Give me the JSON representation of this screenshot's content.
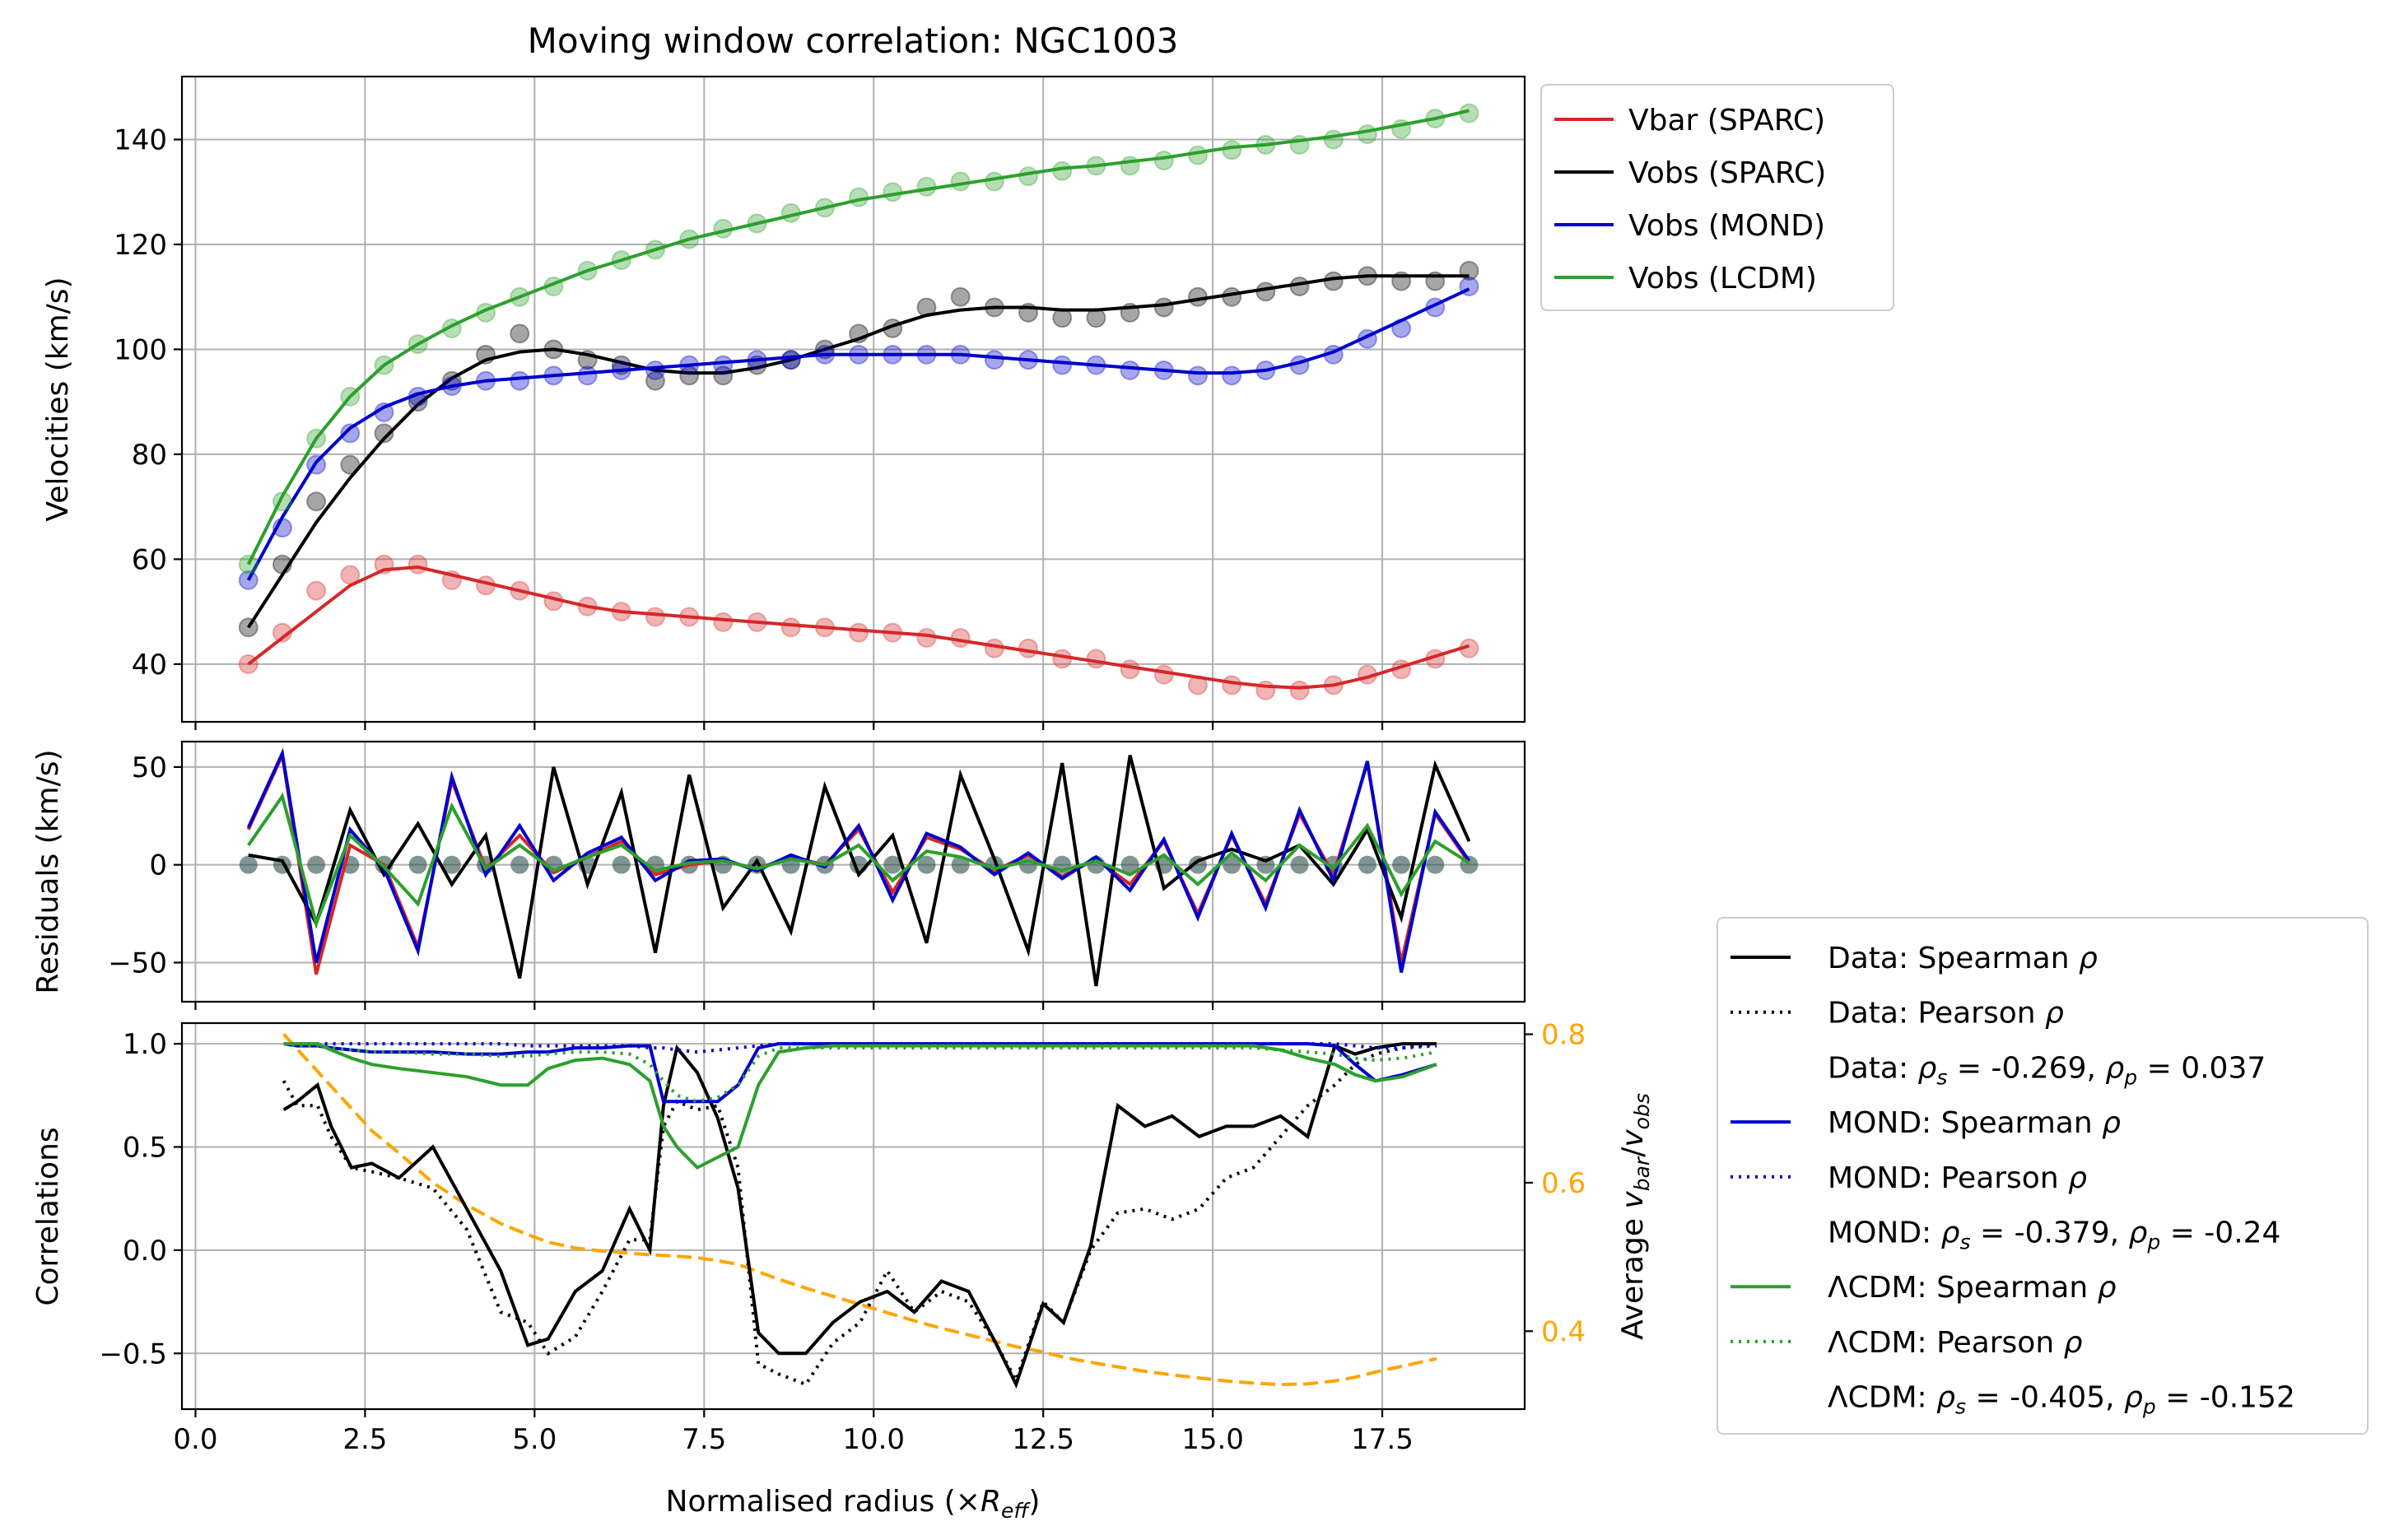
{
  "chart_data": [
    {
      "type": "line",
      "title": "Moving window correlation: NGC1003",
      "ylabel": "Velocities (km/s)",
      "xlim": [
        -0.2,
        19.6
      ],
      "ylim": [
        29,
        152
      ],
      "yticks": [
        "40",
        "60",
        "80",
        "100",
        "120",
        "140"
      ],
      "grid": true,
      "legend_position": "outside top-right",
      "legend": [
        "Vbar (SPARC)",
        "Vobs (SPARC)",
        "Vobs (MOND)",
        "Vobs (LCDM)"
      ],
      "x": [
        0.78,
        1.28,
        1.78,
        2.28,
        2.78,
        3.28,
        3.78,
        4.28,
        4.78,
        5.28,
        5.78,
        6.28,
        6.78,
        7.28,
        7.78,
        8.28,
        8.78,
        9.28,
        9.78,
        10.28,
        10.78,
        11.28,
        11.78,
        12.28,
        12.78,
        13.28,
        13.78,
        14.28,
        14.78,
        15.28,
        15.78,
        16.28,
        16.78,
        17.28,
        17.78,
        18.28,
        18.78
      ],
      "series": [
        {
          "name": "Vbar (SPARC)",
          "color": "#d62728",
          "points": [
            40,
            46,
            54,
            57,
            59,
            59,
            56,
            55,
            54,
            52,
            51,
            50,
            49,
            49,
            48,
            48,
            47,
            47,
            46,
            46,
            45,
            45,
            43,
            43,
            41,
            41,
            39,
            38,
            36,
            36,
            35,
            35,
            36,
            38,
            39,
            41,
            43
          ],
          "smooth": [
            40,
            45,
            50,
            55,
            58,
            58.5,
            57,
            55.5,
            54,
            52.5,
            51,
            50,
            49.5,
            49,
            48.5,
            48,
            47.5,
            47,
            46.5,
            46,
            45.5,
            44.5,
            43.5,
            42.5,
            41.5,
            40.5,
            39.5,
            38.5,
            37.5,
            36.5,
            35.8,
            35.5,
            36,
            37.5,
            39.5,
            41.5,
            43.5
          ]
        },
        {
          "name": "Vobs (SPARC)",
          "color": "#000000",
          "points": [
            47,
            59,
            71,
            78,
            84,
            90,
            94,
            99,
            103,
            100,
            98,
            97,
            94,
            95,
            95,
            97,
            98,
            100,
            103,
            104,
            108,
            110,
            108,
            107,
            106,
            106,
            107,
            108,
            110,
            110,
            111,
            112,
            113,
            114,
            113,
            113,
            115
          ],
          "smooth": [
            47,
            57,
            67,
            75.5,
            83,
            89.5,
            94.5,
            98,
            99.5,
            100,
            99,
            97.5,
            96,
            95.5,
            95.5,
            96.5,
            98,
            100,
            102,
            104.5,
            106.5,
            107.5,
            108,
            108,
            107.5,
            107.5,
            108,
            108.5,
            109.5,
            110.5,
            111.5,
            112.5,
            113.5,
            114,
            114,
            114,
            114
          ]
        },
        {
          "name": "Vobs (MOND)",
          "color": "#0000cc",
          "points": [
            56,
            66,
            78,
            84,
            88,
            91,
            93,
            94,
            94,
            95,
            95,
            96,
            96,
            97,
            97,
            98,
            98,
            99,
            99,
            99,
            99,
            99,
            98,
            98,
            97,
            97,
            96,
            96,
            95,
            95,
            96,
            97,
            99,
            102,
            104,
            108,
            112
          ],
          "smooth": [
            56,
            68,
            78.5,
            85,
            89,
            91.5,
            93,
            94,
            94.5,
            95,
            95.5,
            96,
            96.5,
            97,
            97.5,
            98,
            98.5,
            99,
            99,
            99,
            99,
            99,
            98.5,
            98,
            97.5,
            97,
            96.5,
            96,
            95.5,
            95.5,
            96,
            97.5,
            99.5,
            102.5,
            105.5,
            108.5,
            111.5
          ]
        },
        {
          "name": "Vobs (LCDM)",
          "color": "#2ca02c",
          "points": [
            59,
            71,
            83,
            91,
            97,
            101,
            104,
            107,
            110,
            112,
            115,
            117,
            119,
            121,
            123,
            124,
            126,
            127,
            129,
            130,
            131,
            132,
            132,
            133,
            134,
            135,
            135,
            136,
            137,
            138,
            139,
            139,
            140,
            141,
            142,
            144,
            145
          ],
          "smooth": [
            59,
            72,
            83,
            91,
            97,
            101,
            104.5,
            107.5,
            110,
            112.5,
            115,
            117,
            119,
            121,
            122.5,
            124,
            125.5,
            127,
            128.5,
            129.5,
            130.5,
            131.5,
            132.5,
            133.5,
            134.5,
            135,
            135.8,
            136.5,
            137.5,
            138.5,
            139,
            139.8,
            140.6,
            141.6,
            142.8,
            144,
            145.5
          ]
        }
      ]
    },
    {
      "type": "line",
      "ylabel": "Residuals (km/s)",
      "xlim": [
        -0.2,
        19.6
      ],
      "ylim": [
        -70,
        63
      ],
      "yticks": [
        "50",
        "0",
        "−50"
      ],
      "grid": true,
      "x": [
        0.78,
        1.28,
        1.78,
        2.28,
        2.78,
        3.28,
        3.78,
        4.28,
        4.78,
        5.28,
        5.78,
        6.28,
        6.78,
        7.28,
        7.78,
        8.28,
        8.78,
        9.28,
        9.78,
        10.28,
        10.78,
        11.28,
        11.78,
        12.28,
        12.78,
        13.28,
        13.78,
        14.28,
        14.78,
        15.28,
        15.78,
        16.28,
        16.78,
        17.28,
        17.78,
        18.28,
        18.78
      ],
      "series": [
        {
          "name": "Vbar residual",
          "color": "#d62728",
          "values": [
            18,
            56,
            -56,
            10,
            0,
            -42,
            43,
            -2,
            15,
            -4,
            4,
            12,
            -5,
            0,
            2,
            -2,
            4,
            0,
            18,
            -14,
            14,
            8,
            -3,
            5,
            -6,
            3,
            -10,
            12,
            -25,
            15,
            -20,
            26,
            -5,
            52,
            -50,
            26,
            1
          ]
        },
        {
          "name": "Vobs residual",
          "color": "#000000",
          "values": [
            5,
            2,
            -30,
            28,
            -5,
            21,
            -10,
            15,
            -58,
            50,
            -10,
            37,
            -45,
            46,
            -22,
            2,
            -34,
            40,
            -5,
            15,
            -40,
            46,
            3,
            -44,
            52,
            -62,
            56,
            -12,
            2,
            8,
            2,
            10,
            -10,
            18,
            -27,
            51,
            12
          ]
        },
        {
          "name": "MOND residual",
          "color": "#0000cc",
          "values": [
            19,
            57,
            -50,
            18,
            -2,
            -44,
            45,
            -5,
            20,
            -8,
            6,
            14,
            -8,
            2,
            3,
            -3,
            5,
            -1,
            20,
            -18,
            16,
            9,
            -5,
            6,
            -7,
            4,
            -13,
            13,
            -27,
            16,
            -22,
            28,
            -8,
            53,
            -55,
            27,
            2
          ]
        },
        {
          "name": "LCDM residual",
          "color": "#2ca02c",
          "values": [
            10,
            35,
            -30,
            15,
            -1,
            -20,
            30,
            -2,
            10,
            -3,
            4,
            10,
            -3,
            1,
            2,
            -2,
            3,
            0,
            10,
            -8,
            7,
            4,
            -2,
            2,
            -3,
            2,
            -5,
            5,
            -10,
            6,
            -8,
            10,
            -2,
            20,
            -15,
            12,
            1
          ]
        }
      ]
    },
    {
      "type": "line",
      "ylabel": "Correlations",
      "y2label": "Average v_bar/v_obs",
      "xlabel": "Normalised radius (×R_eff)",
      "xlim": [
        -0.2,
        19.6
      ],
      "xticks": [
        "0.0",
        "2.5",
        "5.0",
        "7.5",
        "10.0",
        "12.5",
        "15.0",
        "17.5"
      ],
      "ylim": [
        -0.77,
        1.1
      ],
      "yticks": [
        "1.0",
        "0.5",
        "0.0",
        "−0.5"
      ],
      "y2lim": [
        0.295,
        0.815
      ],
      "y2ticks": [
        "0.8",
        "0.6",
        "0.4"
      ],
      "y2_color": "#ffa500",
      "grid": true,
      "legend_position": "outside lower-right",
      "legend": [
        {
          "label": "Data: Spearman ρ",
          "color": "#000000",
          "dash": "solid"
        },
        {
          "label": "Data: Pearson ρ",
          "color": "#000000",
          "dash": "dotted"
        },
        {
          "label": "Data: ρs = -0.269, ρp = 0.037",
          "color": "none"
        },
        {
          "label": "MOND: Spearman ρ",
          "color": "#0000cc",
          "dash": "solid"
        },
        {
          "label": "MOND: Pearson ρ",
          "color": "#0000cc",
          "dash": "dotted"
        },
        {
          "label": "MOND: ρs = -0.379, ρp = -0.24",
          "color": "none"
        },
        {
          "label": "ΛCDM: Spearman ρ",
          "color": "#2ca02c",
          "dash": "solid"
        },
        {
          "label": "ΛCDM: Pearson ρ",
          "color": "#2ca02c",
          "dash": "dotted"
        },
        {
          "label": "ΛCDM: ρs = -0.405, ρp = -0.152",
          "color": "none"
        }
      ],
      "x": [
        1.3,
        1.5,
        1.8,
        2.0,
        2.3,
        2.6,
        3.0,
        3.5,
        4.0,
        4.5,
        4.9,
        5.2,
        5.6,
        6.0,
        6.4,
        6.7,
        6.9,
        7.1,
        7.4,
        7.7,
        8.0,
        8.3,
        8.6,
        9.0,
        9.4,
        9.8,
        10.2,
        10.6,
        11.0,
        11.4,
        11.8,
        12.1,
        12.5,
        12.8,
        13.2,
        13.6,
        14.0,
        14.4,
        14.8,
        15.2,
        15.6,
        16.0,
        16.4,
        16.8,
        17.1,
        17.4,
        17.8,
        18.3
      ],
      "series": [
        {
          "name": "Data: Spearman ρ",
          "color": "#000000",
          "dash": "solid",
          "values": [
            0.68,
            0.72,
            0.8,
            0.6,
            0.4,
            0.42,
            0.35,
            0.5,
            0.2,
            -0.1,
            -0.46,
            -0.43,
            -0.2,
            -0.1,
            0.2,
            0.0,
            0.7,
            0.98,
            0.86,
            0.64,
            0.3,
            -0.4,
            -0.5,
            -0.5,
            -0.35,
            -0.25,
            -0.2,
            -0.3,
            -0.15,
            -0.2,
            -0.45,
            -0.65,
            -0.26,
            -0.35,
            0.02,
            0.7,
            0.6,
            0.65,
            0.55,
            0.6,
            0.6,
            0.65,
            0.55,
            0.99,
            0.95,
            0.98,
            1.0,
            1.0
          ]
        },
        {
          "name": "Data: Pearson ρ",
          "color": "#000000",
          "dash": "dotted",
          "values": [
            0.82,
            0.7,
            0.7,
            0.55,
            0.4,
            0.38,
            0.35,
            0.3,
            0.1,
            -0.3,
            -0.35,
            -0.5,
            -0.42,
            -0.2,
            0.05,
            0.05,
            0.6,
            0.72,
            0.68,
            0.7,
            0.4,
            -0.55,
            -0.6,
            -0.65,
            -0.45,
            -0.35,
            -0.1,
            -0.3,
            -0.2,
            -0.25,
            -0.45,
            -0.63,
            -0.25,
            -0.35,
            0.0,
            0.18,
            0.2,
            0.15,
            0.2,
            0.35,
            0.4,
            0.55,
            0.7,
            0.8,
            0.9,
            0.95,
            0.98,
            1.0
          ]
        },
        {
          "name": "MOND: Spearman ρ",
          "color": "#0000cc",
          "dash": "solid",
          "values": [
            1.0,
            0.99,
            0.99,
            0.98,
            0.97,
            0.96,
            0.96,
            0.96,
            0.95,
            0.95,
            0.96,
            0.96,
            0.98,
            0.98,
            0.99,
            0.99,
            0.72,
            0.72,
            0.72,
            0.72,
            0.8,
            0.98,
            1.0,
            1.0,
            1.0,
            1.0,
            1.0,
            1.0,
            1.0,
            1.0,
            1.0,
            1.0,
            1.0,
            1.0,
            1.0,
            1.0,
            1.0,
            1.0,
            1.0,
            1.0,
            1.0,
            1.0,
            1.0,
            0.99,
            0.9,
            0.82,
            0.85,
            0.9
          ]
        },
        {
          "name": "MOND: Pearson ρ",
          "color": "#0000cc",
          "dash": "dotted",
          "values": [
            1.0,
            1.0,
            1.0,
            1.0,
            1.0,
            1.0,
            1.0,
            1.0,
            1.0,
            1.0,
            0.99,
            0.99,
            0.99,
            0.99,
            0.99,
            0.98,
            0.98,
            0.97,
            0.96,
            0.97,
            0.98,
            0.99,
            1.0,
            1.0,
            1.0,
            1.0,
            1.0,
            1.0,
            1.0,
            1.0,
            1.0,
            1.0,
            1.0,
            1.0,
            1.0,
            1.0,
            1.0,
            1.0,
            1.0,
            1.0,
            1.0,
            1.0,
            1.0,
            1.0,
            0.99,
            0.98,
            0.98,
            0.99
          ]
        },
        {
          "name": "ΛCDM: Spearman ρ",
          "color": "#2ca02c",
          "dash": "solid",
          "values": [
            1.0,
            1.0,
            1.0,
            0.97,
            0.93,
            0.9,
            0.88,
            0.86,
            0.84,
            0.8,
            0.8,
            0.88,
            0.92,
            0.93,
            0.9,
            0.82,
            0.6,
            0.5,
            0.4,
            0.45,
            0.5,
            0.8,
            0.96,
            0.98,
            0.99,
            0.99,
            0.99,
            0.99,
            0.99,
            0.99,
            0.99,
            0.99,
            0.99,
            0.99,
            0.99,
            0.99,
            0.99,
            0.99,
            0.99,
            0.99,
            0.99,
            0.97,
            0.93,
            0.9,
            0.85,
            0.82,
            0.84,
            0.9
          ]
        },
        {
          "name": "ΛCDM: Pearson ρ",
          "color": "#2ca02c",
          "dash": "dotted",
          "values": [
            1.0,
            0.99,
            0.99,
            0.98,
            0.97,
            0.96,
            0.96,
            0.95,
            0.95,
            0.94,
            0.94,
            0.95,
            0.96,
            0.96,
            0.95,
            0.9,
            0.82,
            0.75,
            0.72,
            0.74,
            0.8,
            0.94,
            0.98,
            0.98,
            0.98,
            0.98,
            0.98,
            0.98,
            0.98,
            0.98,
            0.98,
            0.98,
            0.98,
            0.98,
            0.98,
            0.98,
            0.98,
            0.98,
            0.98,
            0.98,
            0.98,
            0.97,
            0.96,
            0.95,
            0.93,
            0.92,
            0.93,
            0.96
          ]
        },
        {
          "name": "Average vbar/vobs",
          "color": "#ffa500",
          "dash": "dashed",
          "axis": "right",
          "values": [
            0.8,
            0.78,
            0.75,
            0.73,
            0.7,
            0.67,
            0.64,
            0.6,
            0.57,
            0.545,
            0.53,
            0.52,
            0.512,
            0.508,
            0.505,
            0.503,
            0.502,
            0.501,
            0.499,
            0.495,
            0.49,
            0.48,
            0.47,
            0.458,
            0.447,
            0.436,
            0.425,
            0.414,
            0.404,
            0.395,
            0.386,
            0.379,
            0.372,
            0.365,
            0.358,
            0.352,
            0.346,
            0.341,
            0.337,
            0.333,
            0.33,
            0.328,
            0.329,
            0.333,
            0.338,
            0.345,
            0.353,
            0.363
          ]
        }
      ]
    }
  ]
}
